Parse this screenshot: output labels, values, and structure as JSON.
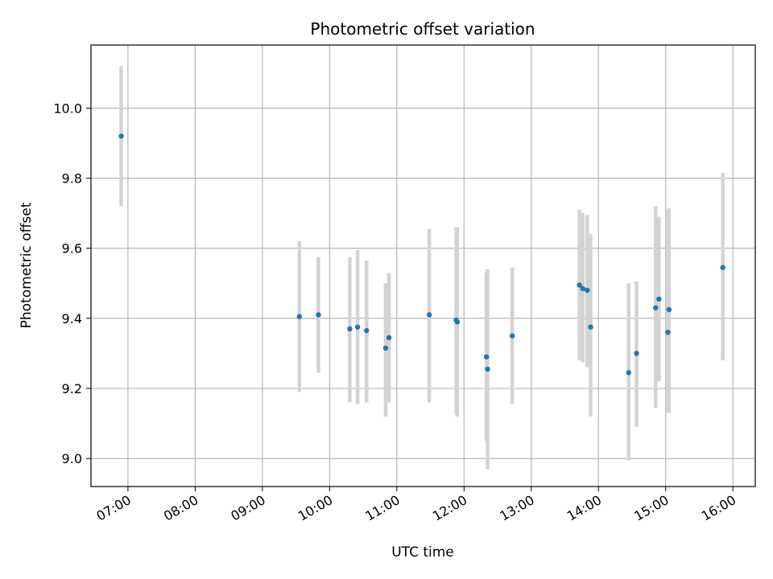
{
  "chart_data": {
    "type": "scatter",
    "title": "Photometric offset variation",
    "xlabel": "UTC time",
    "ylabel": "Photometric offset",
    "x_ticks": [
      "07:00",
      "08:00",
      "09:00",
      "10:00",
      "11:00",
      "12:00",
      "13:00",
      "14:00",
      "15:00",
      "16:00"
    ],
    "y_ticks": [
      "9.0",
      "9.2",
      "9.4",
      "9.6",
      "9.8",
      "10.0"
    ],
    "xlim": [
      "06:27",
      "16:20"
    ],
    "ylim": [
      8.92,
      10.18
    ],
    "grid": true,
    "colors": {
      "point": "#1f77b4",
      "errorbar": "#d3d3d3",
      "grid": "#b0b0b0"
    },
    "points": [
      {
        "x": "06:54",
        "y": 9.92,
        "ylow": 9.72,
        "yhigh": 10.12
      },
      {
        "x": "09:33",
        "y": 9.405,
        "ylow": 9.19,
        "yhigh": 9.62
      },
      {
        "x": "09:50",
        "y": 9.41,
        "ylow": 9.245,
        "yhigh": 9.575
      },
      {
        "x": "10:18",
        "y": 9.37,
        "ylow": 9.16,
        "yhigh": 9.575
      },
      {
        "x": "10:25",
        "y": 9.375,
        "ylow": 9.155,
        "yhigh": 9.595
      },
      {
        "x": "10:33",
        "y": 9.365,
        "ylow": 9.16,
        "yhigh": 9.565
      },
      {
        "x": "10:50",
        "y": 9.315,
        "ylow": 9.12,
        "yhigh": 9.5
      },
      {
        "x": "10:53",
        "y": 9.345,
        "ylow": 9.16,
        "yhigh": 9.53
      },
      {
        "x": "11:29",
        "y": 9.41,
        "ylow": 9.16,
        "yhigh": 9.655
      },
      {
        "x": "11:53",
        "y": 9.395,
        "ylow": 9.13,
        "yhigh": 9.66
      },
      {
        "x": "11:54",
        "y": 9.39,
        "ylow": 9.12,
        "yhigh": 9.66
      },
      {
        "x": "12:20",
        "y": 9.29,
        "ylow": 9.05,
        "yhigh": 9.53
      },
      {
        "x": "12:21",
        "y": 9.255,
        "ylow": 8.97,
        "yhigh": 9.54
      },
      {
        "x": "12:43",
        "y": 9.35,
        "ylow": 9.155,
        "yhigh": 9.545
      },
      {
        "x": "13:43",
        "y": 9.495,
        "ylow": 9.28,
        "yhigh": 9.71
      },
      {
        "x": "13:46",
        "y": 9.485,
        "ylow": 9.275,
        "yhigh": 9.7
      },
      {
        "x": "13:50",
        "y": 9.48,
        "ylow": 9.26,
        "yhigh": 9.695
      },
      {
        "x": "13:53",
        "y": 9.375,
        "ylow": 9.12,
        "yhigh": 9.64
      },
      {
        "x": "14:27",
        "y": 9.245,
        "ylow": 8.995,
        "yhigh": 9.5
      },
      {
        "x": "14:34",
        "y": 9.3,
        "ylow": 9.09,
        "yhigh": 9.505
      },
      {
        "x": "14:51",
        "y": 9.43,
        "ylow": 9.145,
        "yhigh": 9.72
      },
      {
        "x": "14:54",
        "y": 9.455,
        "ylow": 9.22,
        "yhigh": 9.69
      },
      {
        "x": "15:02",
        "y": 9.36,
        "ylow": 9.13,
        "yhigh": 9.71
      },
      {
        "x": "15:03",
        "y": 9.425,
        "ylow": 9.13,
        "yhigh": 9.715
      },
      {
        "x": "15:51",
        "y": 9.545,
        "ylow": 9.28,
        "yhigh": 9.815
      }
    ]
  }
}
